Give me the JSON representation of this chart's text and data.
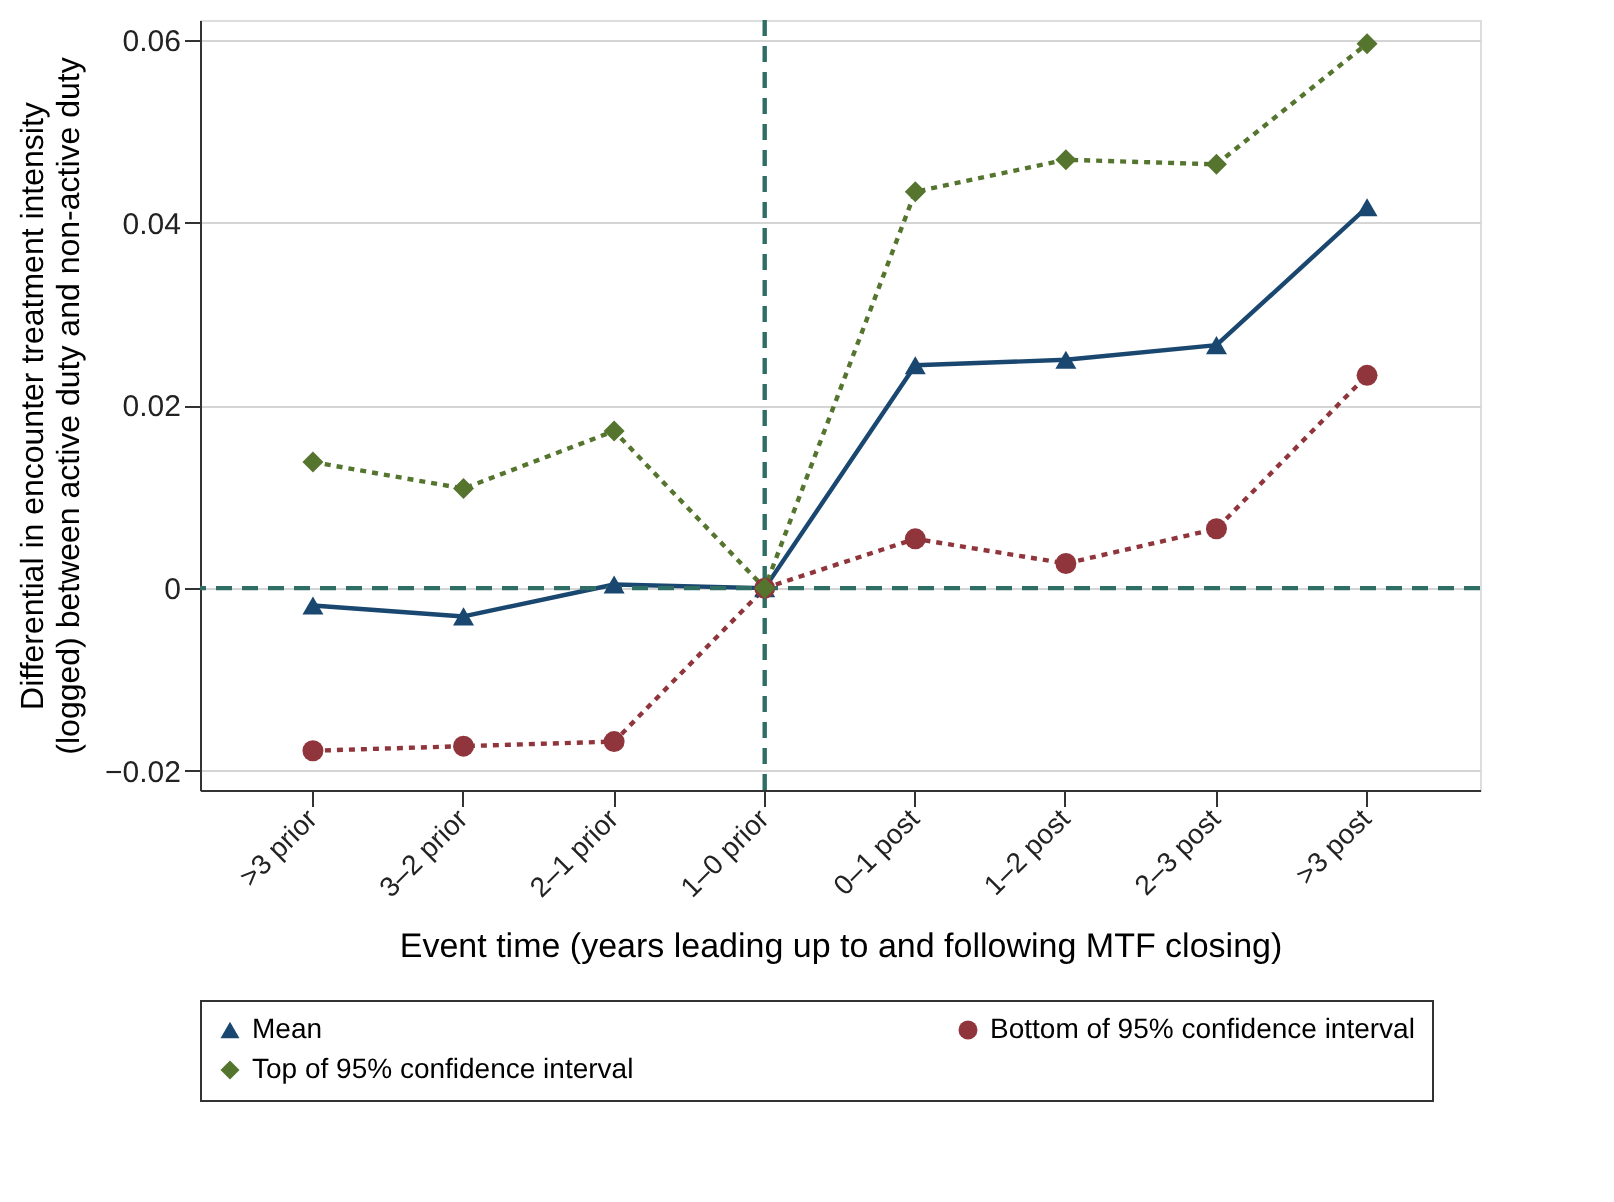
{
  "chart_data": {
    "type": "line",
    "xlabel": "Event time (years leading up to and following MTF closing)",
    "ylabel": "Differential in encounter treatment intensity\n(logged) between active duty and non-active duty",
    "categories": [
      ">3 prior",
      "3–2 prior",
      "2–1 prior",
      "1–0 prior",
      "0–1 post",
      "1–2 post",
      "2–3 post",
      ">3 post"
    ],
    "series": [
      {
        "name": "Mean",
        "color": "#1a476f",
        "marker": "triangle",
        "line_style": "solid",
        "values": [
          -0.0019,
          -0.0031,
          0.0004,
          0,
          0.0244,
          0.025,
          0.0266,
          0.0417
        ]
      },
      {
        "name": "Bottom of 95% confidence interval",
        "color": "#90353b",
        "marker": "circle",
        "line_style": "dotted",
        "values": [
          -0.0178,
          -0.0173,
          -0.0168,
          0,
          0.0054,
          0.0027,
          0.0065,
          0.0233
        ]
      },
      {
        "name": "Top of 95% confidence interval",
        "color": "#55752f",
        "marker": "diamond",
        "line_style": "dotted",
        "values": [
          0.0138,
          0.0109,
          0.0172,
          0,
          0.0434,
          0.0469,
          0.0464,
          0.0596
        ]
      }
    ],
    "ylim": [
      -0.0221,
      0.0622
    ],
    "yticks": [
      {
        "value": -0.02,
        "label": "−0.02"
      },
      0,
      0.02,
      0.04,
      0.06
    ],
    "ref_lines": [
      {
        "axis": "x",
        "value": "1–0 prior",
        "color": "#2e6e65",
        "line_style": "dashed"
      },
      {
        "axis": "y",
        "value": 0,
        "color": "#2e6e65",
        "line_style": "dashed"
      }
    ],
    "grid": "y",
    "legend": "bottom"
  }
}
